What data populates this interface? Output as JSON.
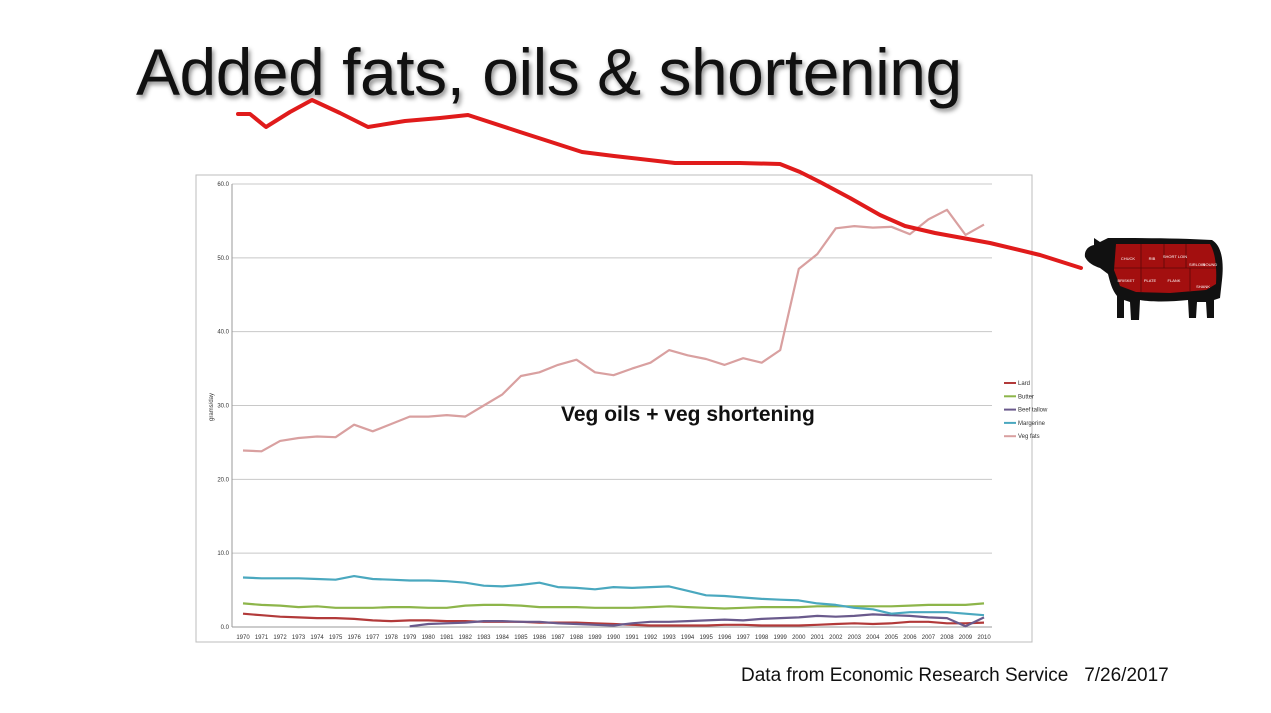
{
  "slide": {
    "title": "Added fats, oils & shortening",
    "footer_source": "Data from Economic Research Service",
    "footer_date": "7/26/2017"
  },
  "cow_labels": [
    "CHUCK",
    "RIB",
    "SHORT LOIN",
    "SIRLOIN",
    "ROUND",
    "BRISKET",
    "PLATE",
    "FLANK",
    "SHANK"
  ],
  "colors": {
    "Lard": "#b23a3a",
    "Butter": "#8db54a",
    "Beef tallow": "#6a5a8c",
    "Margerine": "#4aa8bf",
    "Veg fats": "#d9a0a0",
    "trend": "#e01b1b",
    "cow": "#a30f0f"
  },
  "chart_data": {
    "type": "line",
    "title": "",
    "xlabel": "",
    "ylabel": "grams/day",
    "ylim": [
      0,
      60
    ],
    "yticks": [
      "0.0",
      "10.0",
      "20.0",
      "30.0",
      "40.0",
      "50.0",
      "60.0"
    ],
    "grid": true,
    "legend": "right",
    "annotation": "Veg oils + veg shortening",
    "x": [
      "1970",
      "1971",
      "1972",
      "1973",
      "1974",
      "1975",
      "1976",
      "1977",
      "1978",
      "1979",
      "1980",
      "1981",
      "1982",
      "1983",
      "1984",
      "1985",
      "1986",
      "1987",
      "1988",
      "1989",
      "1990",
      "1991",
      "1992",
      "1993",
      "1994",
      "1995",
      "1996",
      "1997",
      "1998",
      "1999",
      "2000",
      "2001",
      "2002",
      "2003",
      "2004",
      "2005",
      "2006",
      "2007",
      "2008",
      "2009",
      "2010"
    ],
    "series": [
      {
        "name": "Lard",
        "values": [
          1.8,
          1.6,
          1.4,
          1.3,
          1.2,
          1.2,
          1.1,
          0.9,
          0.8,
          0.9,
          0.9,
          0.8,
          0.8,
          0.7,
          0.7,
          0.7,
          0.6,
          0.6,
          0.6,
          0.5,
          0.4,
          0.3,
          0.2,
          0.2,
          0.2,
          0.2,
          0.3,
          0.3,
          0.2,
          0.2,
          0.2,
          0.3,
          0.4,
          0.5,
          0.4,
          0.5,
          0.7,
          0.7,
          0.5,
          0.5,
          0.6
        ]
      },
      {
        "name": "Butter",
        "values": [
          3.2,
          3.0,
          2.9,
          2.7,
          2.8,
          2.6,
          2.6,
          2.6,
          2.7,
          2.7,
          2.6,
          2.6,
          2.9,
          3.0,
          3.0,
          2.9,
          2.7,
          2.7,
          2.7,
          2.6,
          2.6,
          2.6,
          2.7,
          2.8,
          2.7,
          2.6,
          2.5,
          2.6,
          2.7,
          2.7,
          2.7,
          2.8,
          2.8,
          2.8,
          2.8,
          2.8,
          2.9,
          3.0,
          3.0,
          3.0,
          3.2
        ]
      },
      {
        "name": "Beef tallow",
        "values": [
          null,
          null,
          null,
          null,
          null,
          null,
          null,
          null,
          null,
          0.1,
          0.4,
          0.5,
          0.6,
          0.8,
          0.8,
          0.7,
          0.7,
          0.5,
          0.4,
          0.3,
          0.2,
          0.5,
          0.7,
          0.7,
          0.8,
          0.9,
          1.0,
          0.9,
          1.1,
          1.2,
          1.3,
          1.5,
          1.4,
          1.5,
          1.7,
          1.6,
          1.5,
          1.3,
          1.2,
          0.1,
          1.3
        ]
      },
      {
        "name": "Margerine",
        "values": [
          6.7,
          6.6,
          6.6,
          6.6,
          6.5,
          6.4,
          6.9,
          6.5,
          6.4,
          6.3,
          6.3,
          6.2,
          6.0,
          5.6,
          5.5,
          5.7,
          6.0,
          5.4,
          5.3,
          5.1,
          5.4,
          5.3,
          5.4,
          5.5,
          4.9,
          4.3,
          4.2,
          4.0,
          3.8,
          3.7,
          3.6,
          3.2,
          3.0,
          2.6,
          2.4,
          1.8,
          2.0,
          2.0,
          2.0,
          1.8,
          1.6
        ]
      },
      {
        "name": "Veg fats",
        "values": [
          23.9,
          23.8,
          25.2,
          25.6,
          25.8,
          25.7,
          27.4,
          26.5,
          27.5,
          28.5,
          28.5,
          28.7,
          28.5,
          30.0,
          31.5,
          34.0,
          34.5,
          35.5,
          36.2,
          34.5,
          34.1,
          35.0,
          35.8,
          37.5,
          36.8,
          36.3,
          35.5,
          36.4,
          35.8,
          37.5,
          48.5,
          50.5,
          54.0,
          54.3,
          54.1,
          54.2,
          53.2,
          55.2,
          56.5,
          53.1,
          54.5
        ]
      }
    ]
  }
}
